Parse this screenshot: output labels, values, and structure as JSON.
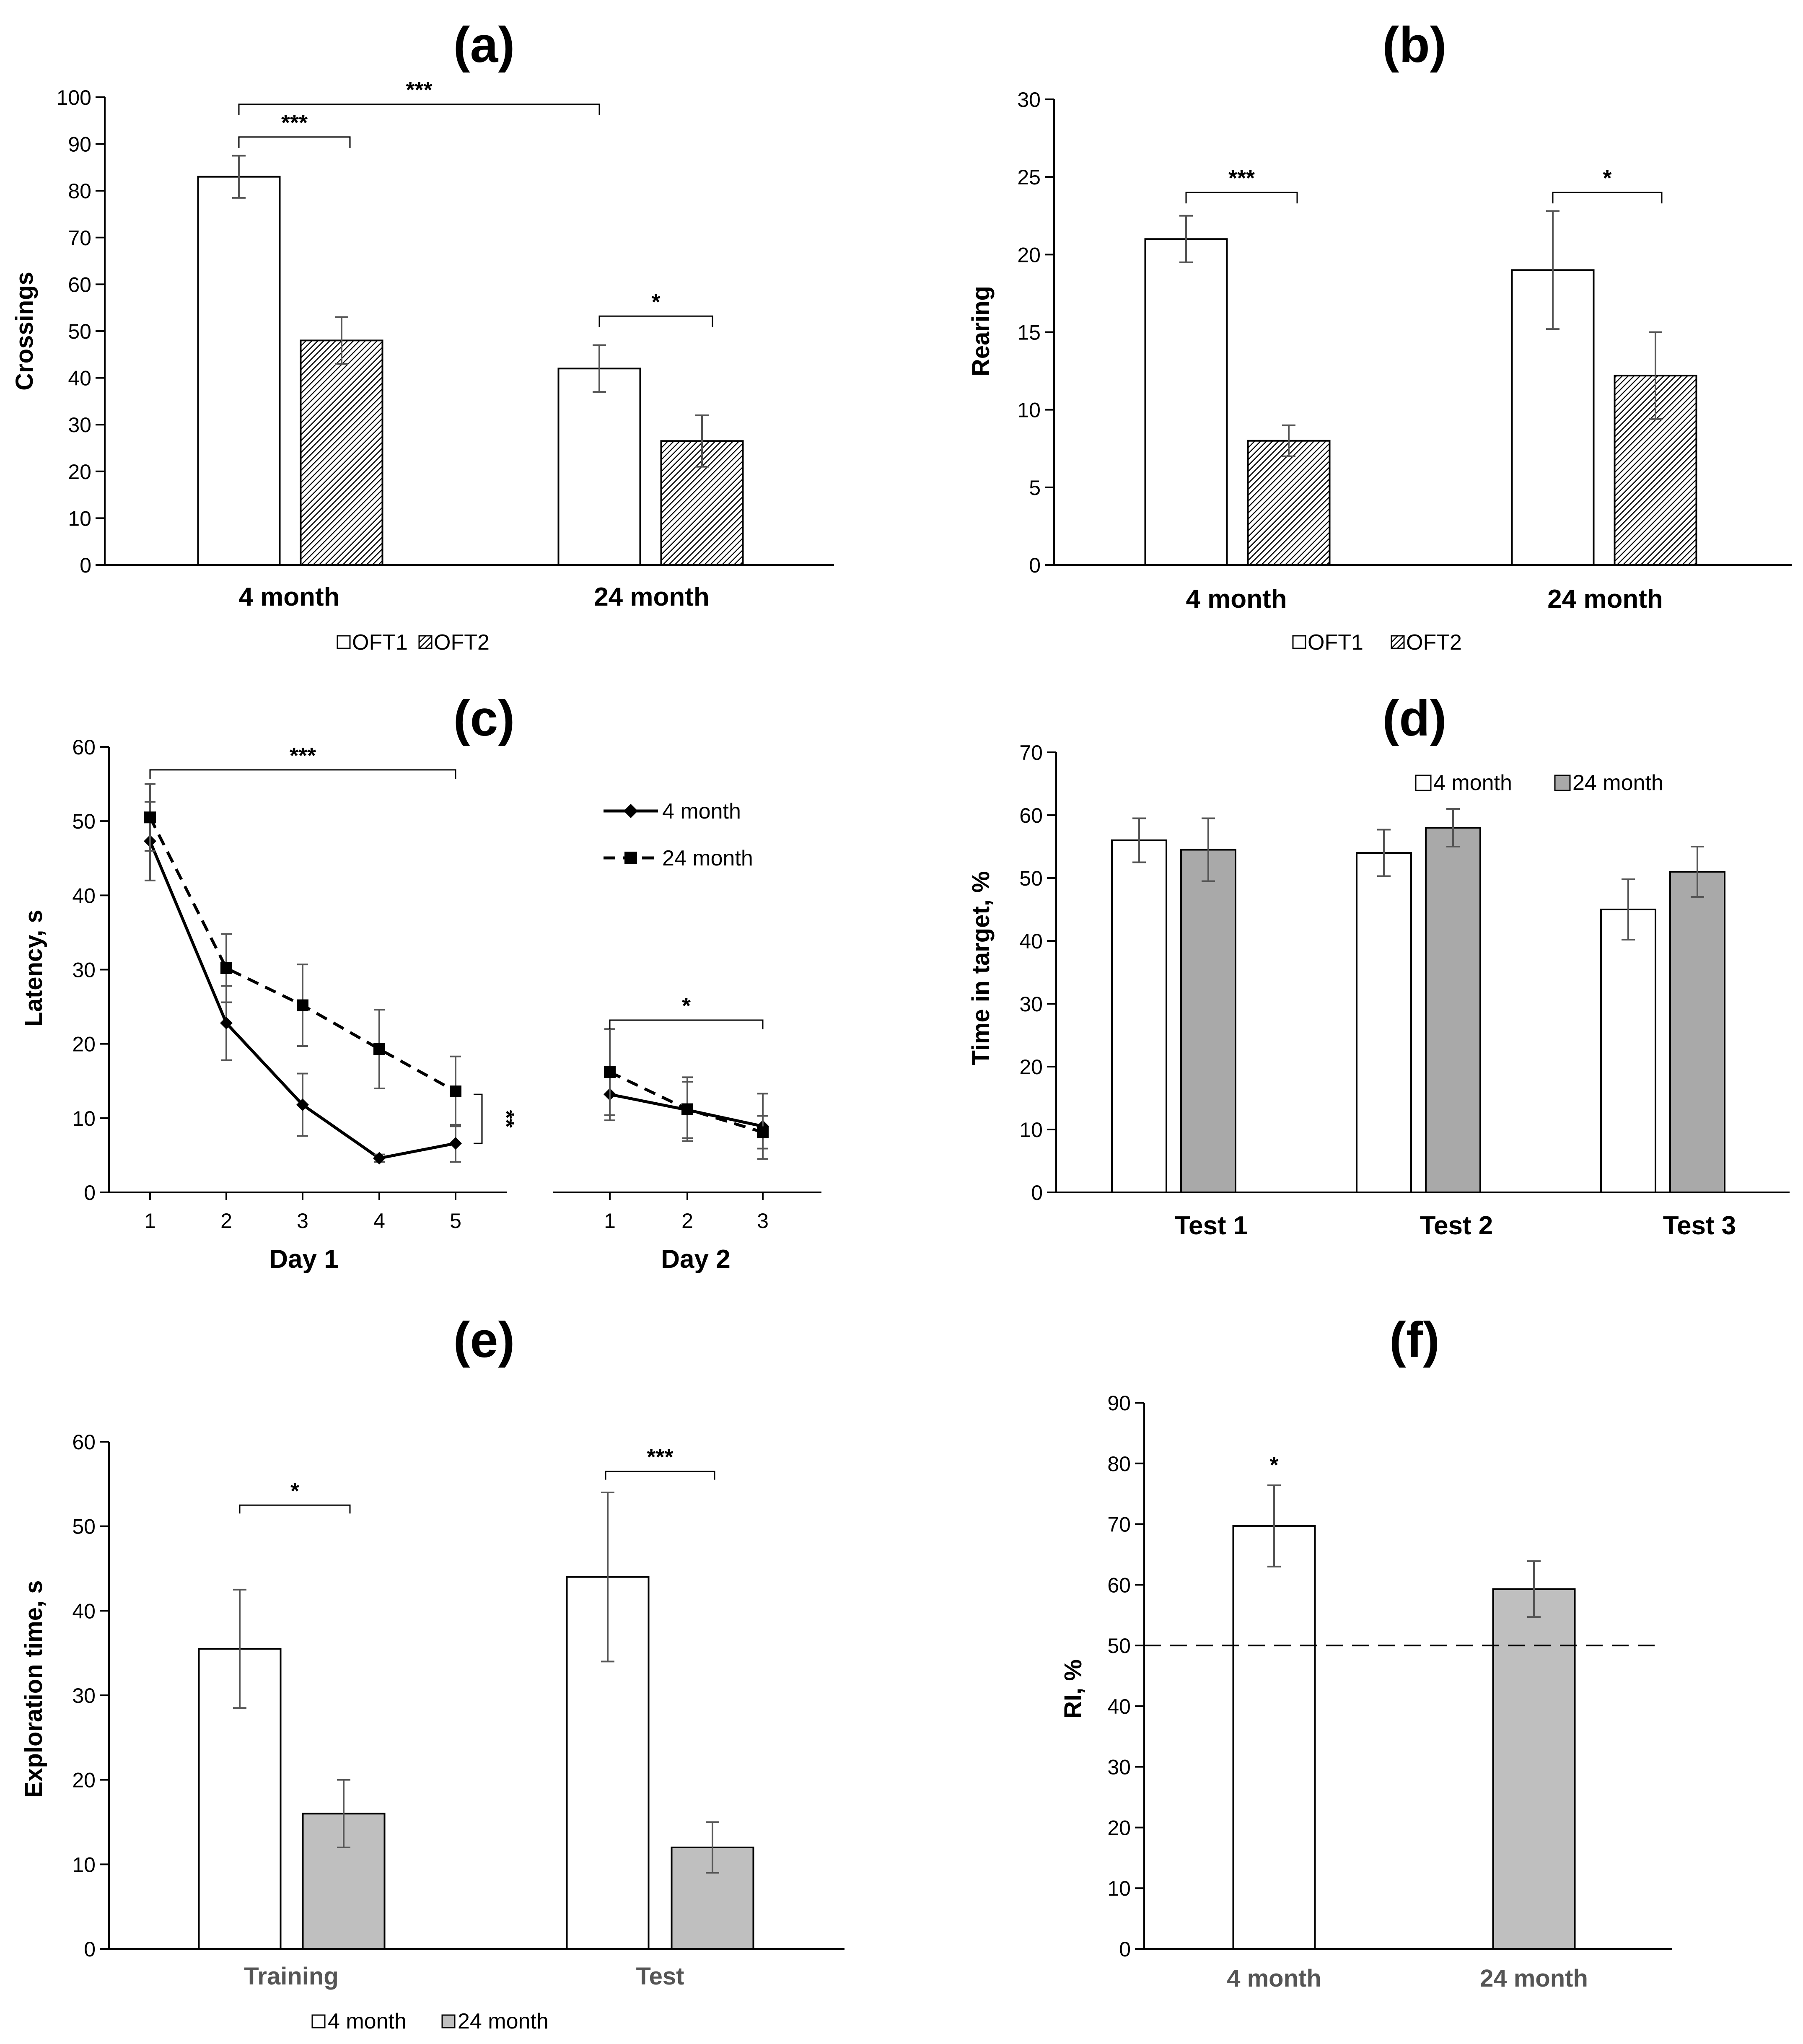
{
  "chart_data": [
    {
      "panel": "(a)",
      "type": "bar",
      "ylabel": "Crossings",
      "ylim": [
        0,
        100
      ],
      "yticks": [
        0,
        10,
        20,
        30,
        40,
        50,
        60,
        70,
        80,
        90,
        100
      ],
      "categories": [
        "4 month",
        "24 month"
      ],
      "series": [
        {
          "name": "OFT1",
          "values": [
            83,
            42
          ],
          "errors": [
            4.5,
            5
          ],
          "fill": "#ffffff"
        },
        {
          "name": "OFT2",
          "values": [
            48,
            26.5
          ],
          "errors": [
            5,
            5.5
          ],
          "fill": "hatch"
        }
      ],
      "legend": [
        "OFT1",
        "OFT2"
      ],
      "legend_position": "bottom",
      "significance": [
        {
          "label": "***",
          "from": "4 month OFT1",
          "to": "4 month OFT2"
        },
        {
          "label": "***",
          "from": "4 month OFT1",
          "to": "24 month OFT1"
        },
        {
          "label": "*",
          "from": "24 month OFT1",
          "to": "24 month OFT2"
        }
      ]
    },
    {
      "panel": "(b)",
      "type": "bar",
      "ylabel": "Rearing",
      "ylim": [
        0,
        30
      ],
      "yticks": [
        0,
        5,
        10,
        15,
        20,
        25,
        30
      ],
      "categories": [
        "4 month",
        "24 month"
      ],
      "series": [
        {
          "name": "OFT1",
          "values": [
            21,
            19
          ],
          "errors": [
            1.5,
            3.8
          ],
          "fill": "#ffffff"
        },
        {
          "name": "OFT2",
          "values": [
            8,
            12.2
          ],
          "errors": [
            1,
            2.8
          ],
          "fill": "hatch"
        }
      ],
      "legend": [
        "OFT1",
        "OFT2"
      ],
      "legend_position": "bottom",
      "significance": [
        {
          "label": "***",
          "from": "4 month OFT1",
          "to": "4 month OFT2"
        },
        {
          "label": "*",
          "from": "24 month OFT1",
          "to": "24 month OFT2"
        }
      ]
    },
    {
      "panel": "(c)",
      "type": "line",
      "ylabel": "Latency, s",
      "ylim": [
        0,
        60
      ],
      "yticks": [
        0,
        10,
        20,
        30,
        40,
        50,
        60
      ],
      "groups": [
        {
          "label": "Day 1",
          "x": [
            "1",
            "2",
            "3",
            "4",
            "5"
          ]
        },
        {
          "label": "Day 2",
          "x": [
            "1",
            "2",
            "3"
          ]
        }
      ],
      "series": [
        {
          "name": "4 month",
          "marker": "diamond",
          "dash": "solid",
          "day1": [
            47.3,
            22.8,
            11.8,
            4.6,
            6.6
          ],
          "day1_err": [
            5.3,
            5,
            4.2,
            0.5,
            2.5
          ],
          "day2": [
            13.2,
            11.1,
            8.9
          ],
          "day2_err": [
            3.5,
            3.8,
            4.4
          ]
        },
        {
          "name": "24 month",
          "marker": "square",
          "dash": "dashed",
          "day1": [
            50.5,
            30.2,
            25.2,
            19.3,
            13.6
          ],
          "day1_err": [
            4.5,
            4.6,
            5.5,
            5.3,
            4.7
          ],
          "day2": [
            16.2,
            11.2,
            8.1
          ],
          "day2_err": [
            5.8,
            4.3,
            2.2
          ]
        }
      ],
      "legend": [
        "4 month",
        "24 month"
      ],
      "legend_position": "top-right",
      "significance": [
        {
          "label": "***",
          "span": "Day 1 trial 1 to trial 5"
        },
        {
          "label": "**",
          "span": "Day 1 trial 5, 4 month vs 24 month"
        },
        {
          "label": "*",
          "span": "Day 2 trial 1 to trial 3"
        }
      ]
    },
    {
      "panel": "(d)",
      "type": "bar",
      "ylabel": "Time in target, %",
      "ylim": [
        0,
        70
      ],
      "yticks": [
        0,
        10,
        20,
        30,
        40,
        50,
        60,
        70
      ],
      "categories": [
        "Test 1",
        "Test 2",
        "Test 3"
      ],
      "series": [
        {
          "name": "4 month",
          "values": [
            56,
            54,
            45
          ],
          "errors": [
            3.5,
            3.7,
            4.8
          ],
          "fill": "#ffffff"
        },
        {
          "name": "24 month",
          "values": [
            54.5,
            58,
            51
          ],
          "errors": [
            5,
            3,
            4
          ],
          "fill": "#a9a9a9"
        }
      ],
      "legend": [
        "4 month",
        "24 month"
      ],
      "legend_position": "top-right"
    },
    {
      "panel": "(e)",
      "type": "bar",
      "ylabel": "Exploration time, s",
      "ylim": [
        0,
        60
      ],
      "yticks": [
        0,
        10,
        20,
        30,
        40,
        50,
        60
      ],
      "categories": [
        "Training",
        "Test"
      ],
      "series": [
        {
          "name": "4 month",
          "values": [
            35.5,
            44
          ],
          "errors": [
            7,
            10
          ],
          "fill": "#ffffff"
        },
        {
          "name": "24 month",
          "values": [
            16,
            12
          ],
          "errors": [
            4,
            3
          ],
          "fill": "#bfbfbf"
        }
      ],
      "legend": [
        "4 month",
        "24 month"
      ],
      "legend_position": "bottom",
      "significance": [
        {
          "label": "*",
          "from": "Training 4 month",
          "to": "Training 24 month"
        },
        {
          "label": "***",
          "from": "Test 4 month",
          "to": "Test 24 month"
        }
      ]
    },
    {
      "panel": "(f)",
      "type": "bar",
      "ylabel": "RI, %",
      "ylim": [
        0,
        90
      ],
      "yticks": [
        0,
        10,
        20,
        30,
        40,
        50,
        60,
        70,
        80,
        90
      ],
      "categories": [
        "4 month",
        "24 month"
      ],
      "series": [
        {
          "name": "RI",
          "values": [
            69.7,
            59.3
          ],
          "errors": [
            6.7,
            4.6
          ],
          "fills": [
            "#ffffff",
            "#bfbfbf"
          ]
        }
      ],
      "reference_line": 50,
      "significance": [
        {
          "label": "*",
          "over": "4 month"
        }
      ]
    }
  ]
}
